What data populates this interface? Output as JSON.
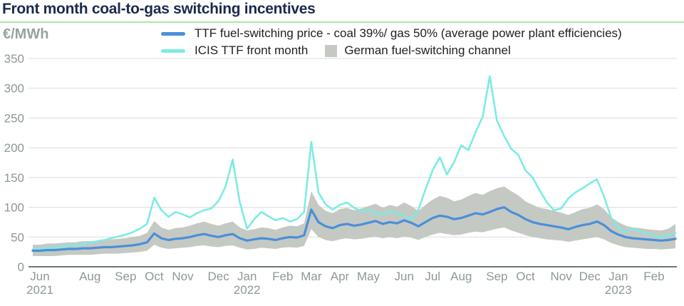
{
  "header": {
    "title": "Front month coal-to-gas switching incentives"
  },
  "y_axis_unit": "€/MWh",
  "legend": [
    {
      "label": "TTF fuel-switching price - coal 39%/ gas 50% (average power plant efficiencies)",
      "swatch": "line",
      "color": "#4a8fd9"
    },
    {
      "label": "ICIS TTF front month",
      "swatch": "line",
      "color": "#7cebe4"
    },
    {
      "label": "German fuel-switching channel",
      "swatch": "square",
      "color": "#c5c9c3"
    }
  ],
  "colors": {
    "title": "#1b2a4e",
    "title_rule": "#a8e8a4",
    "legend_text": "#1f1f1f",
    "axis_text": "#8c9996",
    "grid_line": "#d9dddb",
    "axis_line": "#6b7876",
    "line_blue": "#4a8fd9",
    "line_cyan": "#7cebe4",
    "band_gray": "#c5c9c3",
    "background": "#ffffff"
  },
  "chart_data": {
    "type": "line",
    "title": "Front month coal-to-gas switching incentives",
    "y_unit": "€/MWh",
    "ylim": [
      0,
      350
    ],
    "y_ticks": [
      0,
      50,
      100,
      150,
      200,
      250,
      300,
      350
    ],
    "grid": "horizontal",
    "legend_position": "top",
    "x_start": "2021-06-07",
    "x_interval": "weekly",
    "x_ticks": [
      {
        "month": "Jun",
        "year": "2021",
        "week": 1
      },
      {
        "month": "Aug",
        "week": 8
      },
      {
        "month": "Sep",
        "week": 13
      },
      {
        "month": "Oct",
        "week": 17
      },
      {
        "month": "Nov",
        "week": 21
      },
      {
        "month": "Dec",
        "week": 26
      },
      {
        "month": "Jan",
        "year": "2022",
        "week": 30
      },
      {
        "month": "Feb",
        "week": 35
      },
      {
        "month": "Mar",
        "week": 39
      },
      {
        "month": "Apr",
        "week": 43
      },
      {
        "month": "May",
        "week": 47
      },
      {
        "month": "Jun",
        "week": 52
      },
      {
        "month": "Jul",
        "week": 56
      },
      {
        "month": "Aug",
        "week": 60
      },
      {
        "month": "Sep",
        "week": 65
      },
      {
        "month": "Oct",
        "week": 69
      },
      {
        "month": "Nov",
        "week": 74
      },
      {
        "month": "Dec",
        "week": 78
      },
      {
        "month": "Jan",
        "year": "2023",
        "week": 82
      },
      {
        "month": "Feb",
        "week": 87
      }
    ],
    "series": [
      {
        "name": "TTF fuel-switching price - coal 39%/ gas 50% (average power plant efficiencies)",
        "type": "line",
        "color": "#4a8fd9",
        "values": [
          27,
          27,
          28,
          28,
          29,
          30,
          30,
          31,
          31,
          32,
          33,
          33,
          34,
          35,
          36,
          38,
          41,
          56,
          48,
          45,
          47,
          48,
          50,
          53,
          55,
          52,
          50,
          53,
          55,
          48,
          44,
          46,
          48,
          47,
          45,
          48,
          50,
          49,
          53,
          96,
          75,
          68,
          65,
          70,
          72,
          69,
          71,
          74,
          77,
          72,
          75,
          73,
          78,
          74,
          68,
          75,
          82,
          86,
          84,
          80,
          82,
          86,
          90,
          88,
          92,
          97,
          100,
          92,
          87,
          80,
          75,
          72,
          70,
          68,
          66,
          63,
          67,
          70,
          72,
          76,
          70,
          60,
          54,
          50,
          48,
          47,
          46,
          45,
          44,
          45,
          47
        ]
      },
      {
        "name": "ICIS TTF front month",
        "type": "line",
        "color": "#7cebe4",
        "values": [
          29,
          30,
          31,
          32,
          34,
          35,
          36,
          38,
          40,
          43,
          45,
          48,
          51,
          54,
          58,
          64,
          72,
          116,
          95,
          84,
          92,
          88,
          83,
          90,
          95,
          98,
          110,
          135,
          180,
          108,
          64,
          80,
          92,
          85,
          78,
          82,
          76,
          80,
          92,
          210,
          125,
          105,
          96,
          104,
          108,
          99,
          94,
          96,
          90,
          88,
          94,
          89,
          85,
          80,
          96,
          130,
          162,
          184,
          155,
          176,
          204,
          196,
          226,
          252,
          320,
          246,
          220,
          198,
          188,
          162,
          150,
          128,
          108,
          95,
          98,
          115,
          125,
          132,
          140,
          147,
          118,
          82,
          65,
          58,
          64,
          60,
          56,
          52,
          50,
          53,
          57
        ]
      },
      {
        "name": "German fuel-switching channel",
        "type": "band",
        "color": "#c5c9c3",
        "high": [
          37,
          37,
          39,
          39,
          40,
          41,
          41,
          43,
          43,
          44,
          46,
          46,
          47,
          48,
          50,
          52,
          57,
          77,
          66,
          62,
          65,
          66,
          69,
          73,
          76,
          72,
          69,
          73,
          76,
          66,
          61,
          63,
          66,
          65,
          62,
          66,
          69,
          68,
          73,
          127,
          104,
          94,
          90,
          97,
          99,
          95,
          98,
          102,
          106,
          99,
          104,
          101,
          108,
          102,
          94,
          104,
          113,
          119,
          116,
          110,
          113,
          119,
          124,
          121,
          127,
          132,
          135,
          127,
          120,
          110,
          104,
          99,
          97,
          94,
          91,
          87,
          92,
          97,
          99,
          105,
          97,
          83,
          75,
          69,
          66,
          65,
          63,
          62,
          61,
          64,
          72
        ],
        "low": [
          18,
          18,
          18,
          18,
          19,
          20,
          20,
          20,
          20,
          21,
          22,
          22,
          22,
          23,
          24,
          25,
          27,
          37,
          32,
          30,
          31,
          32,
          33,
          35,
          36,
          34,
          33,
          35,
          36,
          32,
          29,
          30,
          32,
          31,
          30,
          32,
          33,
          32,
          35,
          63,
          50,
          45,
          43,
          46,
          48,
          46,
          47,
          49,
          51,
          48,
          50,
          48,
          51,
          49,
          45,
          50,
          54,
          57,
          55,
          53,
          54,
          57,
          59,
          58,
          61,
          64,
          66,
          61,
          57,
          53,
          50,
          48,
          46,
          45,
          44,
          42,
          44,
          46,
          48,
          50,
          46,
          40,
          36,
          33,
          32,
          31,
          30,
          30,
          29,
          30,
          31
        ]
      }
    ]
  }
}
